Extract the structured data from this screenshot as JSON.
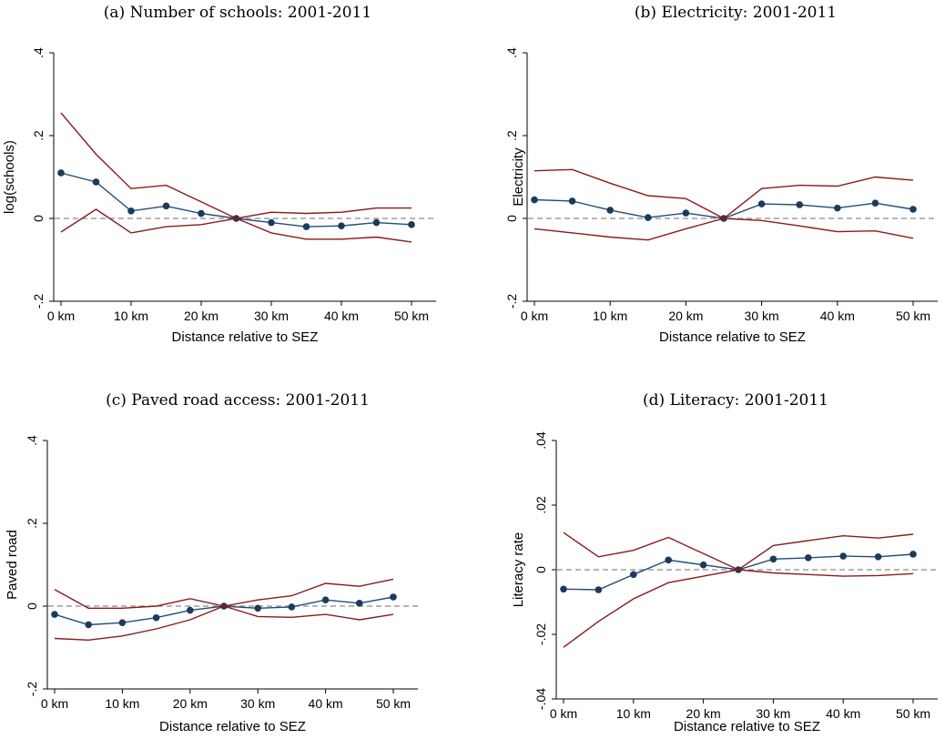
{
  "colors": {
    "estimate": "#1f4e79",
    "ci": "#8b1a1a",
    "zero_line": "#8a8a8a"
  },
  "chart_data": [
    {
      "type": "line",
      "title": "(a) Number of schools: 2001-2011",
      "xlabel": "Distance relative to SEZ",
      "ylabel": "log(schools)",
      "x": [
        0,
        5,
        10,
        15,
        20,
        25,
        30,
        35,
        40,
        45,
        50
      ],
      "xticks": [
        0,
        10,
        20,
        30,
        40,
        50
      ],
      "xtick_labels": [
        "0 km",
        "10 km",
        "20 km",
        "30 km",
        "40 km",
        "50 km"
      ],
      "ylim": [
        -0.2,
        0.4
      ],
      "yticks": [
        -0.2,
        0,
        0.2,
        0.4
      ],
      "ytick_labels": [
        "-.2",
        "0",
        ".2",
        ".4"
      ],
      "reference_line": 0,
      "series": [
        {
          "role": "estimate",
          "values": [
            0.11,
            0.088,
            0.018,
            0.03,
            0.012,
            0.0,
            -0.01,
            -0.02,
            -0.018,
            -0.01,
            -0.015
          ]
        },
        {
          "role": "upper",
          "values": [
            0.255,
            0.155,
            0.072,
            0.08,
            0.04,
            0.0,
            0.015,
            0.012,
            0.015,
            0.025,
            0.025
          ]
        },
        {
          "role": "lower",
          "values": [
            -0.033,
            0.022,
            -0.035,
            -0.02,
            -0.015,
            0.0,
            -0.035,
            -0.05,
            -0.05,
            -0.045,
            -0.057
          ]
        }
      ],
      "grid": false
    },
    {
      "type": "line",
      "title": "(b) Electricity: 2001-2011",
      "xlabel": "Distance relative to SEZ",
      "ylabel": "Electricity",
      "x": [
        0,
        5,
        10,
        15,
        20,
        25,
        30,
        35,
        40,
        45,
        50
      ],
      "xticks": [
        0,
        10,
        20,
        30,
        40,
        50
      ],
      "xtick_labels": [
        "0 km",
        "10 km",
        "20 km",
        "30 km",
        "40 km",
        "50 km"
      ],
      "ylim": [
        -0.2,
        0.4
      ],
      "yticks": [
        -0.2,
        0,
        0.2,
        0.4
      ],
      "ytick_labels": [
        "-.2",
        "0",
        ".2",
        ".4"
      ],
      "reference_line": 0,
      "series": [
        {
          "role": "estimate",
          "values": [
            0.045,
            0.042,
            0.02,
            0.002,
            0.013,
            0.0,
            0.035,
            0.033,
            0.025,
            0.037,
            0.022
          ]
        },
        {
          "role": "upper",
          "values": [
            0.115,
            0.118,
            0.085,
            0.055,
            0.048,
            0.0,
            0.072,
            0.08,
            0.078,
            0.1,
            0.092
          ]
        },
        {
          "role": "lower",
          "values": [
            -0.025,
            -0.035,
            -0.045,
            -0.052,
            -0.025,
            0.0,
            -0.005,
            -0.018,
            -0.032,
            -0.03,
            -0.048
          ]
        }
      ],
      "grid": false
    },
    {
      "type": "line",
      "title": "(c) Paved road access: 2001-2011",
      "xlabel": "Distance relative to SEZ",
      "ylabel": "Paved road",
      "x": [
        0,
        5,
        10,
        15,
        20,
        25,
        30,
        35,
        40,
        45,
        50
      ],
      "xticks": [
        0,
        10,
        20,
        30,
        40,
        50
      ],
      "xtick_labels": [
        "0 km",
        "10 km",
        "20 km",
        "30 km",
        "40 km",
        "50 km"
      ],
      "ylim": [
        -0.2,
        0.4
      ],
      "yticks": [
        -0.2,
        0,
        0.2,
        0.4
      ],
      "ytick_labels": [
        "-.2",
        "0",
        ".2",
        ".4"
      ],
      "reference_line": 0,
      "series": [
        {
          "role": "estimate",
          "values": [
            -0.02,
            -0.045,
            -0.04,
            -0.028,
            -0.01,
            0.0,
            -0.005,
            -0.002,
            0.015,
            0.007,
            0.022
          ]
        },
        {
          "role": "upper",
          "values": [
            0.04,
            -0.005,
            -0.005,
            0.0,
            0.018,
            0.0,
            0.015,
            0.025,
            0.055,
            0.048,
            0.065
          ]
        },
        {
          "role": "lower",
          "values": [
            -0.078,
            -0.082,
            -0.072,
            -0.055,
            -0.033,
            0.0,
            -0.025,
            -0.027,
            -0.02,
            -0.033,
            -0.02
          ]
        }
      ],
      "grid": false
    },
    {
      "type": "line",
      "title": "(d) Literacy: 2001-2011",
      "xlabel": "Distance relative to SEZ",
      "ylabel": "Literacy rate",
      "x": [
        0,
        5,
        10,
        15,
        20,
        25,
        30,
        35,
        40,
        45,
        50
      ],
      "xticks": [
        0,
        10,
        20,
        30,
        40,
        50
      ],
      "xtick_labels": [
        "0 km",
        "10 km",
        "20 km",
        "30 km",
        "40 km",
        "50 km"
      ],
      "ylim": [
        -0.04,
        0.04
      ],
      "yticks": [
        -0.04,
        -0.02,
        0,
        0.02,
        0.04
      ],
      "ytick_labels": [
        "-.04",
        "-.02",
        "0",
        ".02",
        ".04"
      ],
      "reference_line": 0,
      "series": [
        {
          "role": "estimate",
          "values": [
            -0.006,
            -0.0062,
            -0.0015,
            0.003,
            0.0015,
            0.0,
            0.0033,
            0.0037,
            0.0042,
            0.004,
            0.0048
          ]
        },
        {
          "role": "upper",
          "values": [
            0.0115,
            0.004,
            0.006,
            0.01,
            0.005,
            0.0,
            0.0075,
            0.009,
            0.0105,
            0.0098,
            0.011
          ]
        },
        {
          "role": "lower",
          "values": [
            -0.024,
            -0.016,
            -0.009,
            -0.004,
            -0.002,
            0.0,
            -0.001,
            -0.0015,
            -0.002,
            -0.0018,
            -0.0012
          ]
        }
      ],
      "grid": false
    }
  ]
}
